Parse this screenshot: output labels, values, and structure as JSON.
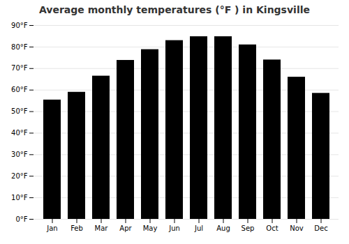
{
  "chart_data": {
    "type": "bar",
    "title": "Average monthly temperatures (°F ) in Kingsville",
    "categories": [
      "Jan",
      "Feb",
      "Mar",
      "Apr",
      "May",
      "Jun",
      "Jul",
      "Aug",
      "Sep",
      "Oct",
      "Nov",
      "Dec"
    ],
    "values": [
      55.4,
      59.0,
      66.5,
      73.8,
      78.8,
      83.0,
      84.8,
      84.8,
      81.0,
      74.0,
      66.0,
      58.5
    ],
    "ylim": [
      0,
      90
    ],
    "yticks": [
      {
        "value": 0,
        "label": "0°F"
      },
      {
        "value": 10,
        "label": "10°F"
      },
      {
        "value": 20,
        "label": "20°F"
      },
      {
        "value": 30,
        "label": "30°F"
      },
      {
        "value": 40,
        "label": "40°F"
      },
      {
        "value": 50,
        "label": "50°F"
      },
      {
        "value": 60,
        "label": "60°F"
      },
      {
        "value": 70,
        "label": "70°F"
      },
      {
        "value": 80,
        "label": "80°F"
      },
      {
        "value": 90,
        "label": "90°F"
      }
    ],
    "grid": true
  }
}
